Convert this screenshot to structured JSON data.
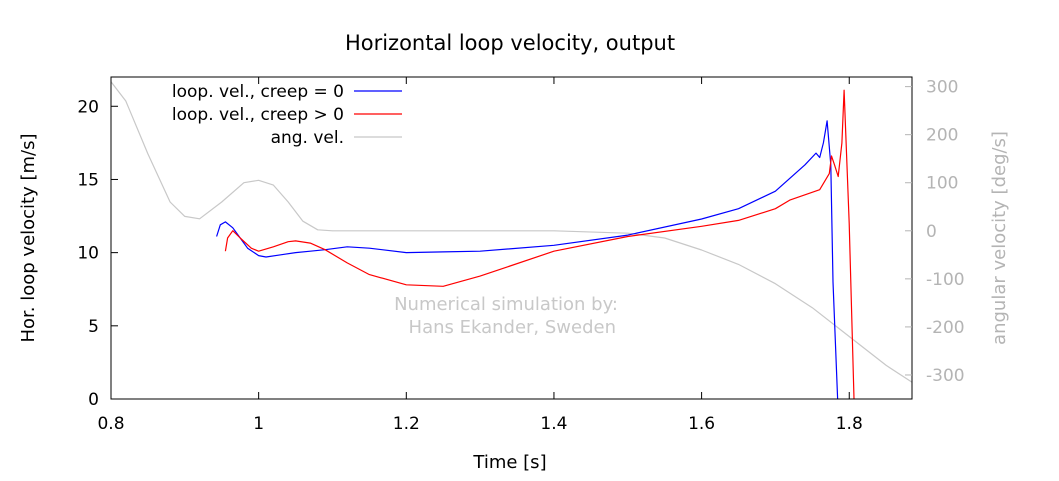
{
  "chart_data": {
    "type": "line",
    "title": "Horizontal loop velocity, output",
    "xlabel": "Time [s]",
    "ylabel": "Hor. loop velocity [m/s]",
    "y2label": "angular velocity [deg/s]",
    "xlim": [
      0.8,
      1.885
    ],
    "ylim": [
      0,
      22
    ],
    "y2lim": [
      -350,
      320
    ],
    "x_ticks": [
      "0.8",
      "1",
      "1.2",
      "1.4",
      "1.6",
      "1.8"
    ],
    "y_ticks": [
      "0",
      "5",
      "10",
      "15",
      "20"
    ],
    "y2_ticks": [
      "-300",
      "-200",
      "-100",
      "0",
      "100",
      "200",
      "300"
    ],
    "grid": false,
    "legend_position": "top-left",
    "annotation": [
      "Numerical simulation by:",
      "Hans Ekander, Sweden"
    ],
    "series": [
      {
        "name": "loop. vel., creep = 0",
        "color": "#0000ff",
        "axis": "y",
        "x": [
          0.943,
          0.948,
          0.955,
          0.965,
          0.975,
          0.985,
          1.0,
          1.01,
          1.03,
          1.05,
          1.07,
          1.09,
          1.12,
          1.15,
          1.2,
          1.25,
          1.3,
          1.4,
          1.5,
          1.6,
          1.65,
          1.7,
          1.74,
          1.755,
          1.76,
          1.765,
          1.77,
          1.775,
          1.778,
          1.785
        ],
        "y": [
          11.1,
          11.9,
          12.1,
          11.7,
          11.0,
          10.3,
          9.8,
          9.7,
          9.85,
          10.0,
          10.1,
          10.2,
          10.4,
          10.3,
          10.0,
          10.05,
          10.1,
          10.5,
          11.2,
          12.3,
          13.0,
          14.2,
          16.0,
          16.8,
          16.5,
          17.5,
          19.0,
          16.0,
          8.0,
          -1.0
        ]
      },
      {
        "name": "loop. vel., creep > 0",
        "color": "#ff0000",
        "axis": "y",
        "x": [
          0.955,
          0.958,
          0.965,
          0.975,
          0.99,
          1.0,
          1.02,
          1.04,
          1.05,
          1.07,
          1.09,
          1.12,
          1.15,
          1.2,
          1.25,
          1.3,
          1.4,
          1.5,
          1.6,
          1.65,
          1.7,
          1.72,
          1.76,
          1.773,
          1.776,
          1.78,
          1.785,
          1.79,
          1.793,
          1.8,
          1.807
        ],
        "y": [
          10.1,
          11.0,
          11.5,
          11.0,
          10.3,
          10.1,
          10.4,
          10.75,
          10.8,
          10.65,
          10.2,
          9.3,
          8.5,
          7.8,
          7.7,
          8.4,
          10.1,
          11.1,
          11.8,
          12.2,
          13.0,
          13.6,
          14.3,
          15.4,
          16.6,
          16.0,
          15.2,
          17.5,
          21.1,
          12.0,
          -1.0
        ]
      },
      {
        "name": "ang. vel.",
        "color": "#c8c8c8",
        "axis": "y2",
        "x": [
          0.8,
          0.82,
          0.85,
          0.88,
          0.9,
          0.92,
          0.95,
          0.98,
          1.0,
          1.02,
          1.04,
          1.06,
          1.08,
          1.1,
          1.2,
          1.3,
          1.4,
          1.5,
          1.55,
          1.6,
          1.65,
          1.7,
          1.75,
          1.8,
          1.85,
          1.885
        ],
        "y": [
          310,
          270,
          160,
          60,
          30,
          25,
          60,
          100,
          105,
          95,
          60,
          20,
          2,
          0,
          0,
          0,
          0,
          -5,
          -15,
          -40,
          -70,
          -110,
          -160,
          -220,
          -280,
          -315
        ]
      }
    ]
  }
}
